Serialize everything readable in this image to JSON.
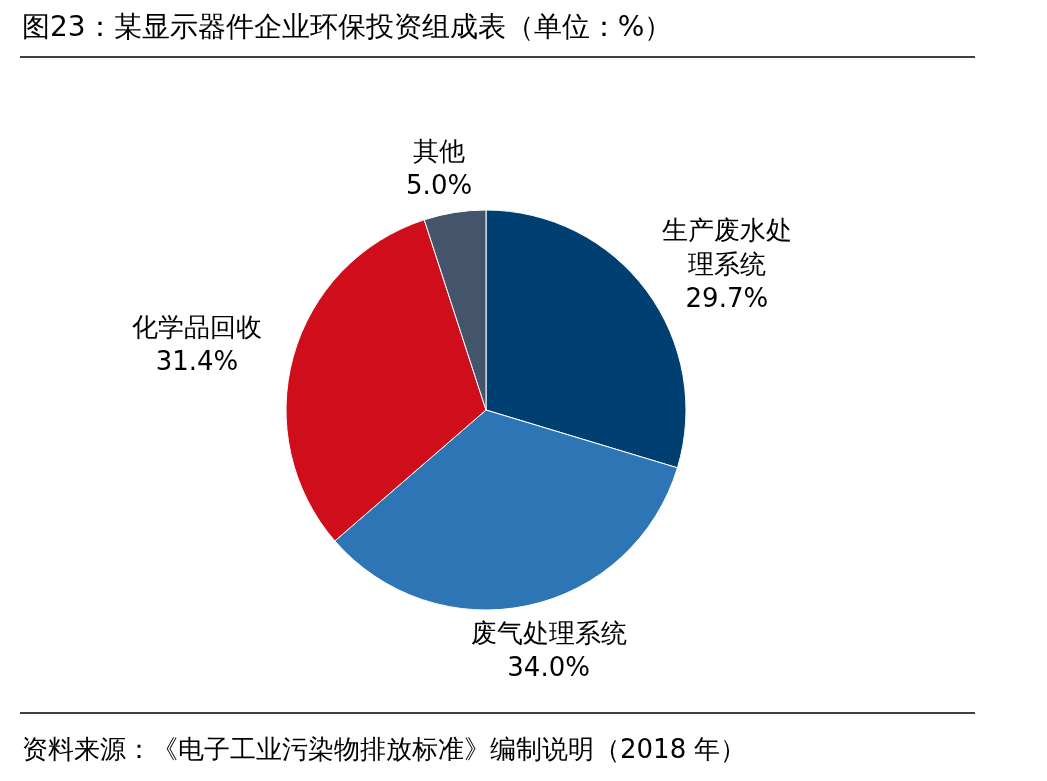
{
  "chart_data": {
    "type": "pie",
    "title": "图23：某显示器件企业环保投资组成表（单位：%）",
    "categories": [
      "生产废水处理系统",
      "废气处理系统",
      "化学品回收",
      "其他"
    ],
    "values": [
      29.7,
      34.0,
      31.4,
      5.0
    ],
    "colors": [
      "#003f72",
      "#2e75b6",
      "#d00d1b",
      "#44546a"
    ],
    "value_labels": [
      "29.7%",
      "34.0%",
      "31.4%",
      "5.0%"
    ],
    "annotations": [
      "资料来源：《电子工业污染物排放标准》编制说明（2018 年）"
    ]
  }
}
